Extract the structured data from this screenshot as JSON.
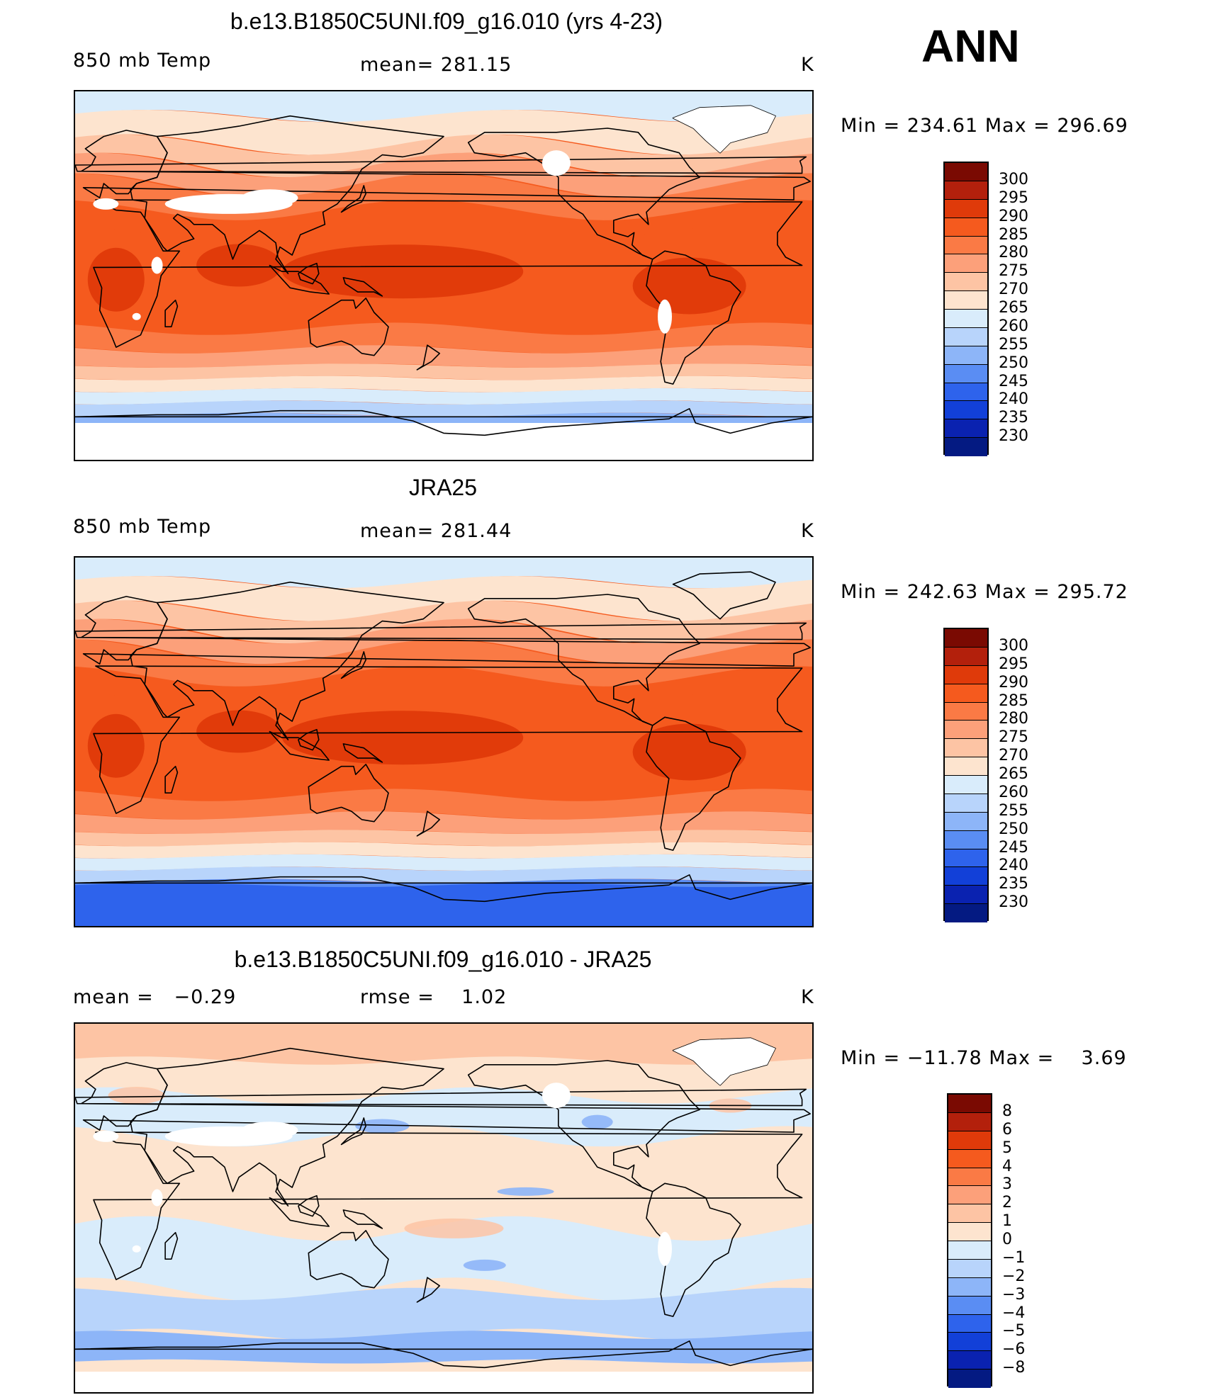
{
  "season": "ANN",
  "panels": [
    {
      "title": "b.e13.B1850C5UNI.f09_g16.010 (yrs 4-23)",
      "left_label": "850 mb Temp",
      "center_label": "mean= 281.15",
      "units": "K",
      "minmax": "Min = 234.61 Max = 296.69",
      "field_type": "model_temperature",
      "legend": {
        "labels": [
          "300",
          "295",
          "290",
          "285",
          "280",
          "275",
          "270",
          "265",
          "260",
          "255",
          "250",
          "245",
          "240",
          "235",
          "230"
        ],
        "colors": [
          "#7a0a02",
          "#b3200c",
          "#df3a0a",
          "#f55a1e",
          "#fa7a45",
          "#fca07a",
          "#fdc4a4",
          "#fde4cf",
          "#d9ecfb",
          "#b8d4fb",
          "#8db5f8",
          "#5a8df3",
          "#2e63ec",
          "#1240d8",
          "#0a22b0",
          "#041a82"
        ]
      }
    },
    {
      "title": "JRA25",
      "left_label": "850 mb Temp",
      "center_label": "mean= 281.44",
      "units": "K",
      "minmax": "Min = 242.63 Max = 295.72",
      "field_type": "obs_temperature",
      "legend": {
        "labels": [
          "300",
          "295",
          "290",
          "285",
          "280",
          "275",
          "270",
          "265",
          "260",
          "255",
          "250",
          "245",
          "240",
          "235",
          "230"
        ],
        "colors": [
          "#7a0a02",
          "#b3200c",
          "#df3a0a",
          "#f55a1e",
          "#fa7a45",
          "#fca07a",
          "#fdc4a4",
          "#fde4cf",
          "#d9ecfb",
          "#b8d4fb",
          "#8db5f8",
          "#5a8df3",
          "#2e63ec",
          "#1240d8",
          "#0a22b0",
          "#041a82"
        ]
      }
    },
    {
      "title": "b.e13.B1850C5UNI.f09_g16.010 - JRA25",
      "left_label": "mean =   −0.29",
      "center_label": "rmse =    1.02",
      "units": "K",
      "minmax": "Min = −11.78 Max =    3.69",
      "field_type": "difference",
      "legend": {
        "labels": [
          "8",
          "6",
          "5",
          "4",
          "3",
          "2",
          "1",
          "0",
          "−1",
          "−2",
          "−3",
          "−4",
          "−5",
          "−6",
          "−8"
        ],
        "colors": [
          "#7a0a02",
          "#b3200c",
          "#df3a0a",
          "#f55a1e",
          "#fa7a45",
          "#fca07a",
          "#fdc4a4",
          "#fde4cf",
          "#d9ecfb",
          "#b8d4fb",
          "#8db5f8",
          "#5a8df3",
          "#2e63ec",
          "#1240d8",
          "#0a22b0",
          "#041a82"
        ]
      }
    }
  ]
}
